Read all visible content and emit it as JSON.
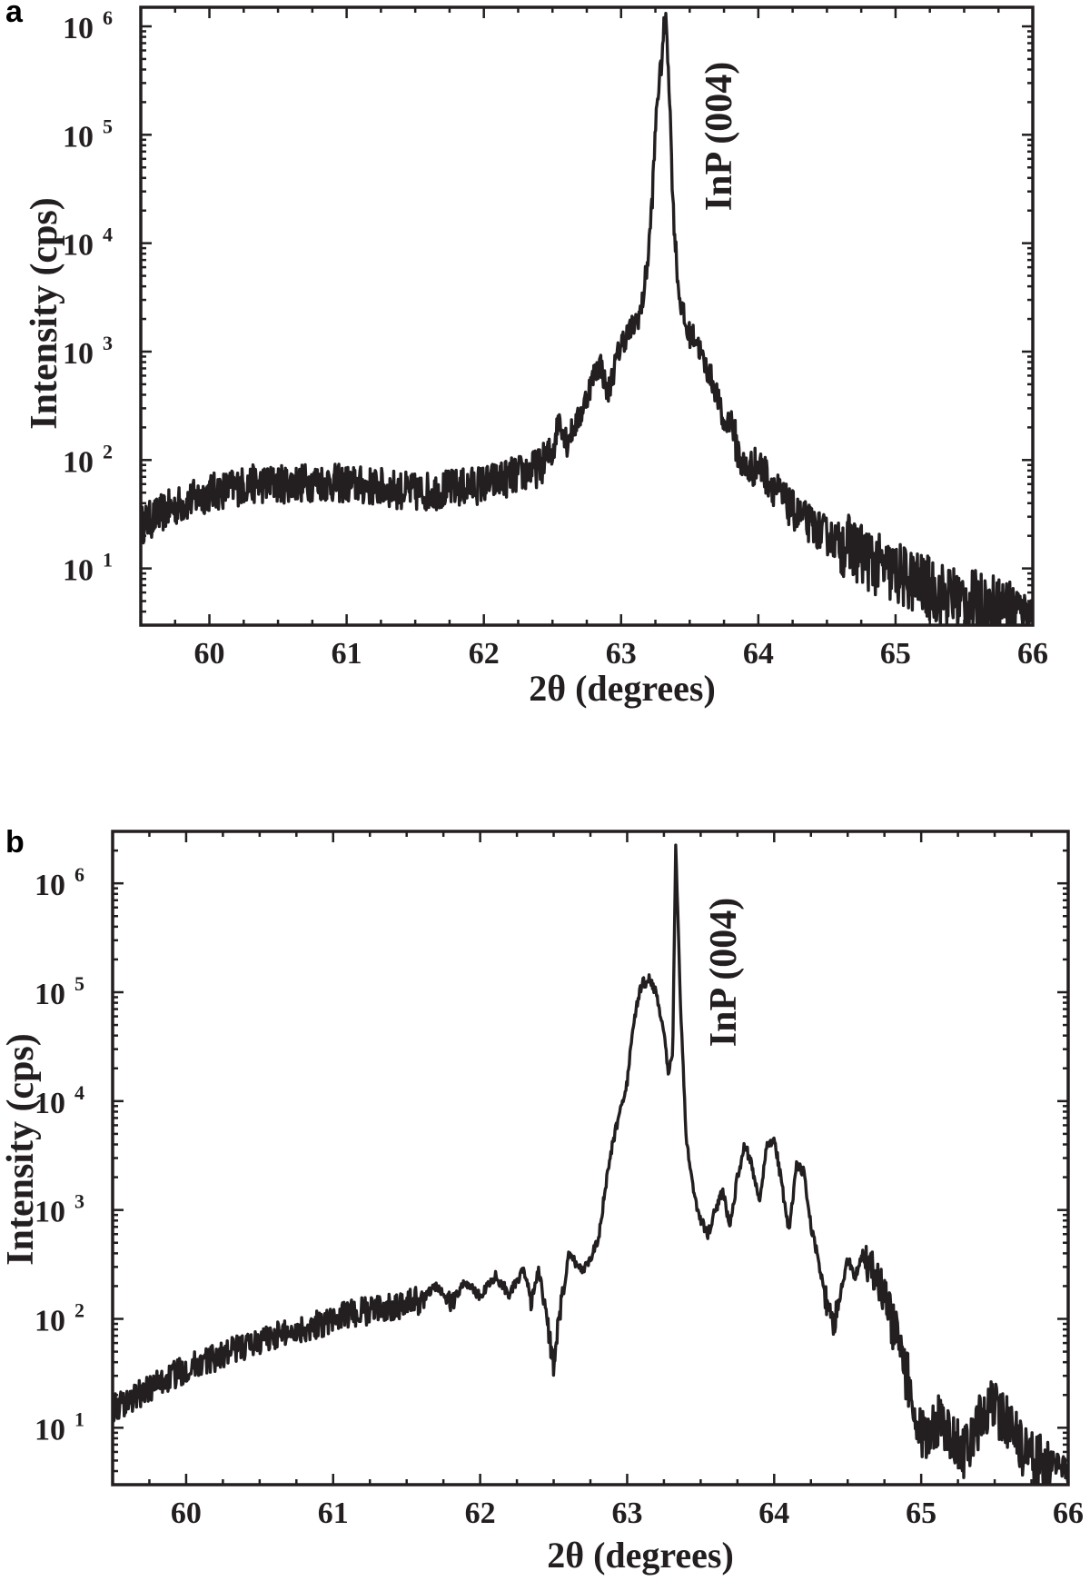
{
  "panels": [
    {
      "letter": "a"
    },
    {
      "letter": "b"
    }
  ],
  "chart_data": [
    {
      "type": "line",
      "xlabel": "2θ (degrees)",
      "ylabel": "Intensity (cps)",
      "annotation": "InP (004)",
      "xlim": [
        59.5,
        66
      ],
      "ylim": [
        3,
        1500000
      ],
      "yscale": "log",
      "xticks": [
        "60",
        "61",
        "62",
        "63",
        "64",
        "65",
        "66"
      ],
      "yticks": [
        {
          "base": "10",
          "exp": "1"
        },
        {
          "base": "10",
          "exp": "2"
        },
        {
          "base": "10",
          "exp": "3"
        },
        {
          "base": "10",
          "exp": "4"
        },
        {
          "base": "10",
          "exp": "5"
        },
        {
          "base": "10",
          "exp": "6"
        }
      ],
      "color": "#231f20",
      "series": [
        {
          "x": [
            59.5,
            59.7,
            60.0,
            60.3,
            60.5,
            60.8,
            61.0,
            61.3,
            61.5,
            61.8,
            62.0,
            62.2,
            62.4,
            62.5,
            62.55,
            62.6,
            62.7,
            62.8,
            62.85,
            62.9,
            62.95,
            63.0,
            63.1,
            63.15,
            63.2,
            63.23,
            63.26,
            63.29,
            63.31,
            63.33,
            63.35,
            63.38,
            63.42,
            63.48,
            63.55,
            63.6,
            63.65,
            63.7,
            63.75,
            63.8,
            63.85,
            63.9,
            64.0,
            64.1,
            64.2,
            64.3,
            64.5,
            64.7,
            64.9,
            65.1,
            65.3,
            65.5,
            65.7,
            66.0
          ],
          "y": [
            25,
            35,
            50,
            60,
            60,
            63,
            60,
            55,
            50,
            55,
            60,
            70,
            85,
            120,
            250,
            150,
            250,
            600,
            800,
            400,
            700,
            1200,
            1800,
            2500,
            8000,
            30000,
            200000,
            400000,
            900000,
            1100000,
            300000,
            20000,
            3500,
            1500,
            1300,
            800,
            600,
            400,
            200,
            250,
            120,
            80,
            90,
            60,
            40,
            30,
            20,
            15,
            10,
            8,
            6,
            5,
            4.5,
            4
          ]
        }
      ]
    },
    {
      "type": "line",
      "xlabel": "2θ (degrees)",
      "ylabel": "Intensity (cps)",
      "annotation": "InP (004)",
      "xlim": [
        59.5,
        66
      ],
      "ylim": [
        3,
        3000000
      ],
      "yscale": "log",
      "xticks": [
        "60",
        "61",
        "62",
        "63",
        "64",
        "65",
        "66"
      ],
      "yticks": [
        {
          "base": "10",
          "exp": "1"
        },
        {
          "base": "10",
          "exp": "2"
        },
        {
          "base": "10",
          "exp": "3"
        },
        {
          "base": "10",
          "exp": "4"
        },
        {
          "base": "10",
          "exp": "5"
        },
        {
          "base": "10",
          "exp": "6"
        }
      ],
      "color": "#231f20",
      "series": [
        {
          "x": [
            59.5,
            59.8,
            60.0,
            60.3,
            60.6,
            60.9,
            61.1,
            61.4,
            61.6,
            61.7,
            61.8,
            61.9,
            62.0,
            62.1,
            62.2,
            62.3,
            62.35,
            62.4,
            62.45,
            62.5,
            62.55,
            62.6,
            62.7,
            62.8,
            62.85,
            62.9,
            62.95,
            63.0,
            63.05,
            63.1,
            63.15,
            63.2,
            63.25,
            63.28,
            63.31,
            63.33,
            63.36,
            63.4,
            63.45,
            63.5,
            63.55,
            63.6,
            63.65,
            63.7,
            63.75,
            63.8,
            63.85,
            63.9,
            63.95,
            64.0,
            64.05,
            64.1,
            64.15,
            64.2,
            64.25,
            64.3,
            64.35,
            64.4,
            64.5,
            64.55,
            64.6,
            64.7,
            64.8,
            64.9,
            65.0,
            65.05,
            65.1,
            65.2,
            65.3,
            65.4,
            65.5,
            65.6,
            65.7,
            65.8,
            65.9,
            66.0
          ],
          "y": [
            15,
            25,
            35,
            50,
            70,
            90,
            110,
            130,
            150,
            200,
            140,
            220,
            160,
            250,
            170,
            280,
            150,
            280,
            100,
            40,
            120,
            380,
            280,
            500,
            1500,
            4000,
            8000,
            15000,
            60000,
            120000,
            130000,
            100000,
            40000,
            18000,
            30000,
            2500000,
            100000,
            5000,
            1500,
            800,
            600,
            1000,
            1500,
            700,
            2000,
            4000,
            2500,
            1200,
            4000,
            4500,
            1800,
            600,
            2600,
            2200,
            700,
            350,
            150,
            80,
            350,
            250,
            380,
            250,
            100,
            30,
            10,
            7,
            12,
            8,
            6,
            12,
            16,
            10,
            6,
            5,
            4.5,
            4
          ]
        }
      ]
    }
  ]
}
